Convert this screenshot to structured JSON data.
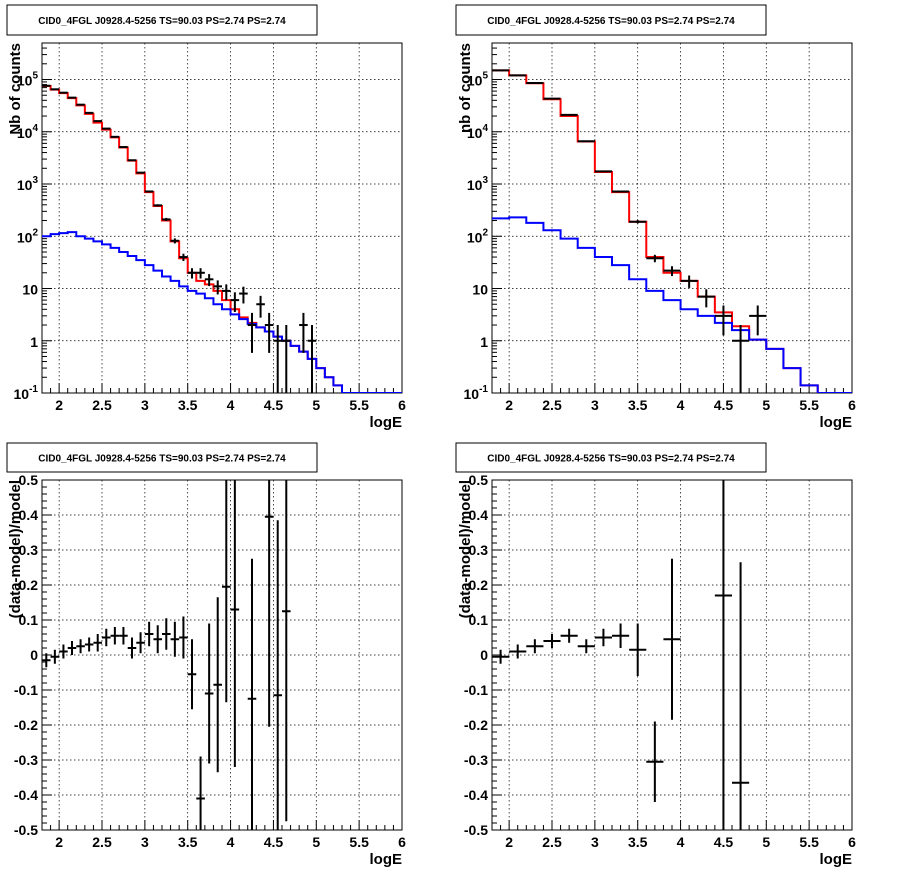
{
  "chart_data": [
    {
      "type": "histogram",
      "title": "CID0_4FGL J0928.4-5256 TS=90.03 PS=2.74 PS=2.74",
      "xlabel": "logE",
      "ylabel": "Nb of counts",
      "xlim": [
        1.8,
        6.0
      ],
      "ylim": [
        0.1,
        500000
      ],
      "yscale": "log",
      "grid": true,
      "x_ticks": [
        "2",
        "2.5",
        "3",
        "3.5",
        "4",
        "4.5",
        "5",
        "5.5",
        "6"
      ],
      "y_ticks": [
        "10^-1",
        "1",
        "10",
        "10^2",
        "10^3",
        "10^4",
        "10^5"
      ],
      "bin_width": 0.1,
      "series": [
        {
          "color": "#ff0000",
          "kind": "step",
          "x": [
            1.85,
            1.95,
            2.05,
            2.15,
            2.25,
            2.35,
            2.45,
            2.55,
            2.65,
            2.75,
            2.85,
            2.95,
            3.05,
            3.15,
            3.25,
            3.35,
            3.45,
            3.55,
            3.65,
            3.75,
            3.85,
            3.95,
            4.05,
            4.15,
            4.25,
            4.35,
            4.45,
            4.55,
            4.65,
            4.75,
            4.85,
            4.95,
            5.05,
            5.15,
            5.25,
            5.35,
            5.45,
            5.55,
            5.65,
            5.75,
            5.85,
            5.95
          ],
          "values": [
            75000,
            64000,
            55000,
            44000,
            32000,
            22000,
            15000,
            11000,
            7800,
            5000,
            2800,
            1600,
            700,
            380,
            200,
            80,
            38,
            20,
            14,
            12,
            9,
            6,
            4,
            2.8,
            2.2,
            1.8,
            1.5,
            1.2,
            1.0,
            0.8,
            0.62,
            0.45,
            0.3,
            0.2,
            0.14,
            0.1,
            0.1,
            0.1,
            0.1,
            0.1,
            0.1,
            0.1
          ]
        },
        {
          "color": "#0000ff",
          "kind": "step",
          "x": [
            1.85,
            1.95,
            2.05,
            2.15,
            2.25,
            2.35,
            2.45,
            2.55,
            2.65,
            2.75,
            2.85,
            2.95,
            3.05,
            3.15,
            3.25,
            3.35,
            3.45,
            3.55,
            3.65,
            3.75,
            3.85,
            3.95,
            4.05,
            4.15,
            4.25,
            4.35,
            4.45,
            4.55,
            4.65,
            4.75,
            4.85,
            4.95,
            5.05,
            5.15,
            5.25,
            5.35,
            5.45,
            5.55,
            5.65,
            5.75,
            5.85,
            5.95
          ],
          "values": [
            100,
            110,
            115,
            120,
            100,
            90,
            80,
            70,
            60,
            50,
            42,
            35,
            28,
            22,
            17,
            14,
            11,
            9,
            8,
            6.5,
            5,
            4,
            3.2,
            2.6,
            2.1,
            1.8,
            1.5,
            1.2,
            1.0,
            0.8,
            0.62,
            0.45,
            0.3,
            0.2,
            0.14,
            0.1,
            0.1,
            0.1,
            0.1,
            0.1,
            0.1,
            0.1
          ]
        },
        {
          "color": "#000000",
          "kind": "points",
          "x": [
            1.85,
            1.95,
            2.05,
            2.15,
            2.25,
            2.35,
            2.45,
            2.55,
            2.65,
            2.75,
            2.85,
            2.95,
            3.05,
            3.15,
            3.25,
            3.35,
            3.45,
            3.55,
            3.65,
            3.75,
            3.85,
            3.95,
            4.05,
            4.15,
            4.25,
            4.35,
            4.45,
            4.55,
            4.65,
            4.85,
            4.95
          ],
          "values": [
            76000,
            65000,
            56000,
            45000,
            33000,
            23000,
            16000,
            11500,
            8000,
            5100,
            2850,
            1650,
            720,
            390,
            210,
            82,
            40,
            20,
            20,
            15,
            11,
            9,
            6,
            8,
            2,
            5,
            2,
            1,
            1,
            2,
            1
          ]
        }
      ]
    },
    {
      "type": "histogram",
      "title": "CID0_4FGL J0928.4-5256 TS=90.03 PS=2.74 PS=2.74",
      "xlabel": "logE",
      "ylabel": "nb of counts",
      "xlim": [
        1.8,
        6.0
      ],
      "ylim": [
        0.1,
        500000
      ],
      "yscale": "log",
      "grid": true,
      "x_ticks": [
        "2",
        "2.5",
        "3",
        "3.5",
        "4",
        "4.5",
        "5",
        "5.5",
        "6"
      ],
      "y_ticks": [
        "10^-1",
        "1",
        "10",
        "10^2",
        "10^3",
        "10^4",
        "10^5"
      ],
      "bin_width": 0.2,
      "series": [
        {
          "color": "#ff0000",
          "kind": "step",
          "x": [
            1.9,
            2.1,
            2.3,
            2.5,
            2.7,
            2.9,
            3.1,
            3.3,
            3.5,
            3.7,
            3.9,
            4.1,
            4.3,
            4.5,
            4.7,
            4.9,
            5.1,
            5.3,
            5.5,
            5.7,
            5.9
          ],
          "values": [
            150000,
            120000,
            85000,
            42000,
            20000,
            6500,
            1700,
            700,
            190,
            40,
            20,
            14,
            7,
            3.5,
            1.9,
            1.05,
            0.7,
            0.3,
            0.14,
            0.1,
            0.1
          ]
        },
        {
          "color": "#0000ff",
          "kind": "step",
          "x": [
            1.9,
            2.1,
            2.3,
            2.5,
            2.7,
            2.9,
            3.1,
            3.3,
            3.5,
            3.7,
            3.9,
            4.1,
            4.3,
            4.5,
            4.7,
            4.9,
            5.1,
            5.3,
            5.5,
            5.7,
            5.9
          ],
          "values": [
            220,
            230,
            180,
            130,
            90,
            60,
            40,
            28,
            15,
            9,
            6,
            4,
            3,
            2.2,
            1.6,
            1.05,
            0.7,
            0.3,
            0.14,
            0.1,
            0.1
          ]
        },
        {
          "color": "#000000",
          "kind": "points",
          "x": [
            1.9,
            2.1,
            2.3,
            2.5,
            2.7,
            2.9,
            3.1,
            3.3,
            3.5,
            3.7,
            3.9,
            4.1,
            4.3,
            4.5,
            4.7,
            4.9
          ],
          "values": [
            150000,
            120000,
            86000,
            43000,
            21000,
            6600,
            1750,
            720,
            190,
            38,
            22,
            14,
            7,
            3,
            1,
            3
          ]
        }
      ]
    },
    {
      "type": "scatter",
      "title": "CID0_4FGL J0928.4-5256 TS=90.03 PS=2.74 PS=2.74",
      "xlabel": "logE",
      "ylabel": "(data-model)/model",
      "xlim": [
        1.8,
        6.0
      ],
      "ylim": [
        -0.5,
        0.5
      ],
      "grid": true,
      "x_ticks": [
        "2",
        "2.5",
        "3",
        "3.5",
        "4",
        "4.5",
        "5",
        "5.5",
        "6"
      ],
      "y_ticks": [
        "-0.5",
        "-0.4",
        "-0.3",
        "-0.2",
        "-0.1",
        "0",
        "0.1",
        "0.2",
        "0.3",
        "0.4",
        "0.5"
      ],
      "bin_width": 0.1,
      "points": {
        "x": [
          1.85,
          1.95,
          2.05,
          2.15,
          2.25,
          2.35,
          2.45,
          2.55,
          2.65,
          2.75,
          2.85,
          2.95,
          3.05,
          3.15,
          3.25,
          3.35,
          3.45,
          3.55,
          3.65,
          3.75,
          3.85,
          3.95,
          4.05,
          4.25,
          4.45,
          4.55,
          4.65
        ],
        "y": [
          -0.015,
          -0.005,
          0.01,
          0.02,
          0.025,
          0.03,
          0.035,
          0.05,
          0.055,
          0.055,
          0.02,
          0.035,
          0.06,
          0.045,
          0.06,
          0.045,
          0.05,
          -0.055,
          -0.41,
          -0.11,
          -0.085,
          0.195,
          0.13,
          -0.125,
          0.395,
          -0.115,
          0.125
        ],
        "err": [
          0.02,
          0.02,
          0.02,
          0.02,
          0.02,
          0.02,
          0.025,
          0.025,
          0.025,
          0.025,
          0.03,
          0.03,
          0.035,
          0.04,
          0.045,
          0.05,
          0.06,
          0.1,
          0.12,
          0.2,
          0.25,
          0.33,
          0.45,
          0.4,
          0.6,
          0.5,
          0.6
        ]
      }
    },
    {
      "type": "scatter",
      "title": "CID0_4FGL J0928.4-5256 TS=90.03 PS=2.74 PS=2.74",
      "xlabel": "logE",
      "ylabel": "(data-model)/model",
      "xlim": [
        1.8,
        6.0
      ],
      "ylim": [
        -0.5,
        0.5
      ],
      "grid": true,
      "x_ticks": [
        "2",
        "2.5",
        "3",
        "3.5",
        "4",
        "4.5",
        "5",
        "5.5",
        "6"
      ],
      "y_ticks": [
        "-0.5",
        "-0.4",
        "-0.3",
        "-0.2",
        "-0.1",
        "0",
        "0.1",
        "0.2",
        "0.3",
        "0.4",
        "0.5"
      ],
      "bin_width": 0.2,
      "points": {
        "x": [
          1.9,
          2.1,
          2.3,
          2.5,
          2.7,
          2.9,
          3.1,
          3.3,
          3.5,
          3.7,
          3.9,
          4.5,
          4.7
        ],
        "y": [
          -0.005,
          0.01,
          0.025,
          0.04,
          0.055,
          0.025,
          0.05,
          0.055,
          0.015,
          -0.305,
          0.045,
          0.17,
          -0.365
        ],
        "err": [
          0.02,
          0.02,
          0.02,
          0.02,
          0.02,
          0.02,
          0.025,
          0.035,
          0.075,
          0.115,
          0.23,
          0.7,
          0.63
        ]
      }
    }
  ]
}
